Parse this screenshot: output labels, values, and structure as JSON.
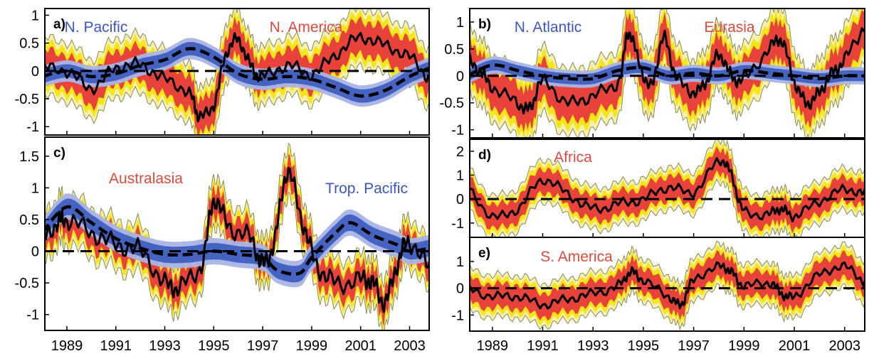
{
  "colors": {
    "red": "#e8423b",
    "yellow": "#f5e61a",
    "pale_yellow": "#f6f0b0",
    "outline": "#8a8a50",
    "blue_dark": "#3f5fc0",
    "blue_light": "#a9b4e6",
    "blue_text": "#3c55c8",
    "red_text": "#e04a3a",
    "line": "#000000"
  },
  "chart_data": [
    {
      "id": "a",
      "type": "line",
      "panel_label": "a)",
      "ylim": [
        -1.15,
        1.12
      ],
      "yticks": [
        {
          "v": 1,
          "t": "1"
        },
        {
          "v": 0.5,
          "t": "0.5"
        },
        {
          "v": 0,
          "t": "0"
        },
        {
          "v": -0.5,
          "t": "-0.5"
        },
        {
          "v": -1,
          "t": "-1"
        }
      ],
      "annotations": [
        {
          "text": "N. Pacific",
          "color": "blue"
        },
        {
          "text": "N. America",
          "color": "red"
        }
      ],
      "land": {
        "x": [
          1988,
          1989,
          1990,
          1991,
          1992,
          1993,
          1994,
          1994.4,
          1995,
          1995.5,
          1996,
          1996.5,
          1997,
          1998,
          1999,
          2000,
          2001,
          2002,
          2003,
          2003.8
        ],
        "y": [
          0.05,
          0.0,
          -0.3,
          0.05,
          0.1,
          -0.15,
          -0.4,
          -0.8,
          -0.6,
          0.3,
          0.55,
          0.1,
          -0.1,
          0.1,
          -0.05,
          0.3,
          0.6,
          0.45,
          0.25,
          -0.15
        ],
        "red_width": 0.3
      },
      "ocean": {
        "x": [
          1988,
          1989,
          1990,
          1991,
          1992,
          1993,
          1994,
          1995,
          1996,
          1997,
          1998,
          1999,
          2000,
          2001,
          2002,
          2003,
          2003.8
        ],
        "y": [
          -0.1,
          0.0,
          -0.1,
          -0.05,
          0.1,
          0.2,
          0.4,
          0.25,
          -0.05,
          -0.15,
          -0.1,
          -0.15,
          -0.3,
          -0.45,
          -0.35,
          -0.1,
          0.05
        ],
        "band_width": 0.12
      }
    },
    {
      "id": "b",
      "type": "line",
      "panel_label": "b)",
      "ylim": [
        -1.15,
        1.25
      ],
      "yticks": [
        {
          "v": 1,
          "t": "1"
        },
        {
          "v": 0.5,
          "t": "0.5"
        },
        {
          "v": 0,
          "t": "0"
        },
        {
          "v": -0.5,
          "t": "-0.5"
        },
        {
          "v": -1,
          "t": "-1"
        }
      ],
      "annotations": [
        {
          "text": "N. Atlantic",
          "color": "blue"
        },
        {
          "text": "Eurasia",
          "color": "red"
        }
      ],
      "land": {
        "x": [
          1988,
          1988.5,
          1989,
          1990,
          1990.5,
          1991,
          1992,
          1993,
          1994,
          1994.4,
          1994.8,
          1995.3,
          1995.8,
          1996.3,
          1997,
          1997.5,
          1998,
          1998.5,
          1999,
          2000,
          2000.5,
          2001,
          2001.5,
          2002,
          2002.5,
          2003,
          2003.8
        ],
        "y": [
          0.3,
          0.1,
          -0.2,
          -0.5,
          -0.6,
          -0.1,
          -0.5,
          -0.35,
          -0.1,
          0.8,
          0.3,
          -0.2,
          0.7,
          0.0,
          -0.3,
          -0.1,
          0.4,
          0.0,
          -0.05,
          0.5,
          0.65,
          -0.1,
          -0.5,
          -0.3,
          0.05,
          0.3,
          0.95
        ],
        "red_width": 0.35
      },
      "ocean": {
        "x": [
          1988,
          1989,
          1990,
          1991,
          1992,
          1993,
          1994,
          1995,
          1996,
          1997,
          1998,
          1999,
          2000,
          2001,
          2002,
          2003,
          2003.8
        ],
        "y": [
          0.0,
          0.2,
          0.1,
          0.0,
          -0.05,
          -0.05,
          0.1,
          0.15,
          0.0,
          0.05,
          0.0,
          0.1,
          0.05,
          0.0,
          -0.05,
          0.0,
          0.0
        ],
        "band_width": 0.1
      }
    },
    {
      "id": "c",
      "type": "line",
      "panel_label": "c)",
      "ylim": [
        -1.25,
        1.8
      ],
      "yticks": [
        {
          "v": 1.5,
          "t": "1.5"
        },
        {
          "v": 1,
          "t": "1"
        },
        {
          "v": 0.5,
          "t": "0.5"
        },
        {
          "v": 0,
          "t": "0"
        },
        {
          "v": -0.5,
          "t": "-0.5"
        },
        {
          "v": -1,
          "t": "-1"
        }
      ],
      "annotations": [
        {
          "text": "Australasia",
          "color": "red"
        },
        {
          "text": "Trop. Pacific",
          "color": "blue"
        }
      ],
      "land": {
        "x": [
          1988,
          1988.6,
          1989,
          1990,
          1991,
          1992,
          1993,
          1993.6,
          1994.5,
          1995,
          1995.6,
          1996.5,
          1997,
          1997.5,
          1998,
          1998.6,
          1999.2,
          2000,
          2001,
          2001.5,
          2002,
          2002.5,
          2003,
          2003.8
        ],
        "y": [
          0.15,
          0.45,
          0.5,
          0.3,
          0.1,
          0.0,
          -0.5,
          -0.55,
          -0.2,
          0.8,
          0.4,
          0.2,
          -0.2,
          0.2,
          1.25,
          0.5,
          -0.2,
          -0.5,
          -0.45,
          -0.5,
          -0.8,
          -0.2,
          0.15,
          -0.3
        ],
        "red_width": 0.22
      },
      "ocean": {
        "x": [
          1988,
          1989,
          1990,
          1991,
          1992,
          1993,
          1994,
          1995,
          1996,
          1997,
          1997.6,
          1998.5,
          1999,
          2000,
          2000.6,
          2001.5,
          2002.5,
          2003,
          2003.8
        ],
        "y": [
          0.3,
          0.7,
          0.45,
          0.2,
          0.05,
          -0.05,
          -0.05,
          0.0,
          -0.05,
          -0.1,
          -0.3,
          -0.35,
          -0.1,
          0.3,
          0.45,
          0.25,
          0.1,
          0.0,
          0.05
        ],
        "band_width": 0.13
      }
    },
    {
      "id": "d",
      "type": "line",
      "panel_label": "d)",
      "ylim": [
        -1.6,
        2.5
      ],
      "yticks": [
        {
          "v": 2,
          "t": "2"
        },
        {
          "v": 1,
          "t": "1"
        },
        {
          "v": 0,
          "t": "0"
        },
        {
          "v": -1,
          "t": "-1"
        }
      ],
      "annotations": [
        {
          "text": "Africa",
          "color": "red"
        }
      ],
      "land": {
        "x": [
          1988,
          1989,
          1990,
          1991,
          1992,
          1993,
          1994,
          1995,
          1996,
          1997,
          1998,
          1998.5,
          1999,
          2000,
          2000.5,
          2001,
          2002,
          2003,
          2003.8
        ],
        "y": [
          0.5,
          -0.7,
          -0.4,
          0.8,
          0.2,
          -0.4,
          -0.2,
          0.0,
          0.5,
          0.3,
          1.6,
          1.0,
          -0.5,
          -0.6,
          -0.4,
          -0.7,
          -0.1,
          0.4,
          0.2
        ],
        "red_width": 0.5
      },
      "ocean": null
    },
    {
      "id": "e",
      "type": "line",
      "panel_label": "e)",
      "ylim": [
        -1.6,
        1.9
      ],
      "yticks": [
        {
          "v": 1,
          "t": "1"
        },
        {
          "v": 0,
          "t": "0"
        },
        {
          "v": -1,
          "t": "-1"
        }
      ],
      "annotations": [
        {
          "text": "S. America",
          "color": "red"
        }
      ],
      "land": {
        "x": [
          1988,
          1989,
          1990,
          1991,
          1992,
          1993,
          1994,
          1994.5,
          1995,
          1996,
          1996.5,
          1997,
          1998,
          1998.5,
          1999,
          2000,
          2000.5,
          2001,
          2002,
          2003,
          2003.8
        ],
        "y": [
          0.0,
          -0.3,
          -0.3,
          -0.6,
          -0.4,
          -0.2,
          0.1,
          0.6,
          0.3,
          -0.3,
          -0.6,
          0.3,
          0.8,
          0.6,
          0.1,
          0.2,
          -0.2,
          -0.3,
          0.5,
          0.8,
          0.2
        ],
        "red_width": 0.45
      },
      "ocean": null
    }
  ],
  "x_axis": {
    "xlim": [
      1988.1,
      2003.8
    ],
    "ticks": [
      1989,
      1991,
      1993,
      1995,
      1997,
      1999,
      2001,
      2003
    ],
    "labels": [
      "1989",
      "1991",
      "1993",
      "1995",
      "1997",
      "1999",
      "2001",
      "2003"
    ]
  }
}
